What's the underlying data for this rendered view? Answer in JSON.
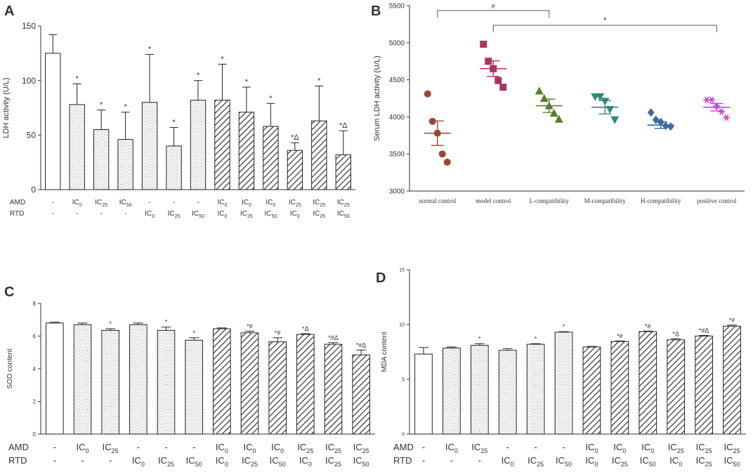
{
  "figure": {
    "panels": [
      "A",
      "B",
      "C",
      "D"
    ]
  },
  "chart_data": [
    {
      "panel": "A",
      "type": "bar",
      "ylabel": "LDH activity (U/L)",
      "ylim": [
        0,
        150
      ],
      "yticks": [
        "0",
        "50",
        "100",
        "150"
      ],
      "row_labels": [
        "AMD",
        "RTD"
      ],
      "categories": [
        {
          "amd": "-",
          "rtd": "-",
          "value": 125,
          "error": 17,
          "sig": "",
          "fill": "open"
        },
        {
          "amd": "IC0",
          "rtd": "-",
          "value": 78,
          "error": 19,
          "sig": "*",
          "fill": "dots"
        },
        {
          "amd": "IC25",
          "rtd": "-",
          "value": 55,
          "error": 18,
          "sig": "*",
          "fill": "dots"
        },
        {
          "amd": "IC50",
          "rtd": "-",
          "value": 46,
          "error": 25,
          "sig": "*",
          "fill": "dots"
        },
        {
          "amd": "-",
          "rtd": "IC0",
          "value": 80,
          "error": 44,
          "sig": "*",
          "fill": "dots"
        },
        {
          "amd": "-",
          "rtd": "IC25",
          "value": 40,
          "error": 17,
          "sig": "*",
          "fill": "dots"
        },
        {
          "amd": "-",
          "rtd": "IC50",
          "value": 82,
          "error": 18,
          "sig": "*",
          "fill": "dots"
        },
        {
          "amd": "IC0",
          "rtd": "IC0",
          "value": 82,
          "error": 33,
          "sig": "*",
          "fill": "hatch"
        },
        {
          "amd": "IC0",
          "rtd": "IC25",
          "value": 71,
          "error": 23,
          "sig": "*",
          "fill": "hatch"
        },
        {
          "amd": "IC0",
          "rtd": "IC50",
          "value": 58,
          "error": 21,
          "sig": "*",
          "fill": "hatch"
        },
        {
          "amd": "IC25",
          "rtd": "IC0",
          "value": 36,
          "error": 7,
          "sig": "*Δ",
          "fill": "hatch"
        },
        {
          "amd": "IC25",
          "rtd": "IC25",
          "value": 63,
          "error": 32,
          "sig": "*",
          "fill": "hatch"
        },
        {
          "amd": "IC25",
          "rtd": "IC50",
          "value": 32,
          "error": 22,
          "sig": "*Δ",
          "fill": "hatch"
        }
      ]
    },
    {
      "panel": "B",
      "type": "scatter",
      "ylabel": "Serum LDH activity (U/L)",
      "ylim": [
        3000,
        5500
      ],
      "yticks": [
        "3000",
        "3500",
        "4000",
        "4500",
        "5000",
        "5500"
      ],
      "groups": [
        {
          "name": "normal control",
          "color": "#a0443a",
          "marker": "circle",
          "points": [
            4310,
            3940,
            3780,
            3500,
            3390
          ],
          "mean": 3780,
          "sem": 165
        },
        {
          "name": "model control",
          "color": "#a8365f",
          "marker": "square",
          "points": [
            4980,
            4750,
            4650,
            4490,
            4400
          ],
          "mean": 4650,
          "sem": 105
        },
        {
          "name": "L-compatibility",
          "color": "#5a7d2a",
          "marker": "triangle-up",
          "points": [
            4350,
            4250,
            4150,
            4050,
            3970
          ],
          "mean": 4150,
          "sem": 90
        },
        {
          "name": "M-compatibility",
          "color": "#2e8b7a",
          "marker": "triangle-down",
          "points": [
            4270,
            4270,
            4210,
            4100,
            3960
          ],
          "mean": 4130,
          "sem": 90
        },
        {
          "name": "H-compatibility",
          "color": "#3e6aa0",
          "marker": "diamond",
          "points": [
            4060,
            3960,
            3930,
            3880,
            3870
          ],
          "mean": 3890,
          "sem": 45
        },
        {
          "name": "positive control",
          "color": "#d733d7",
          "marker": "asterisk",
          "points": [
            4230,
            4230,
            4150,
            4070,
            3990
          ],
          "mean": 4130,
          "sem": 50
        }
      ],
      "annotations": [
        {
          "from": "normal control",
          "to": "L-compatibility",
          "label": "#"
        },
        {
          "from": "model control",
          "to": "positive control",
          "label": "*"
        }
      ]
    },
    {
      "panel": "C",
      "type": "bar",
      "ylabel": "SOD content",
      "ylim": [
        0,
        8
      ],
      "yticks": [
        "0",
        "2",
        "4",
        "6",
        "8"
      ],
      "row_labels": [
        "AMD",
        "RTD"
      ],
      "categories": [
        {
          "amd": "-",
          "rtd": "-",
          "value": 6.8,
          "error": 0.05,
          "sig": "",
          "fill": "open"
        },
        {
          "amd": "IC0",
          "rtd": "-",
          "value": 6.7,
          "error": 0.1,
          "sig": "",
          "fill": "dots"
        },
        {
          "amd": "IC25",
          "rtd": "-",
          "value": 6.35,
          "error": 0.1,
          "sig": "*",
          "fill": "dots"
        },
        {
          "amd": "-",
          "rtd": "IC0",
          "value": 6.7,
          "error": 0.1,
          "sig": "",
          "fill": "dots"
        },
        {
          "amd": "-",
          "rtd": "IC25",
          "value": 6.35,
          "error": 0.2,
          "sig": "*",
          "fill": "dots"
        },
        {
          "amd": "-",
          "rtd": "IC50",
          "value": 5.75,
          "error": 0.15,
          "sig": "*",
          "fill": "dots"
        },
        {
          "amd": "IC0",
          "rtd": "IC0",
          "value": 6.45,
          "error": 0.05,
          "sig": "",
          "fill": "hatch"
        },
        {
          "amd": "IC0",
          "rtd": "IC25",
          "value": 6.2,
          "error": 0.1,
          "sig": "*#",
          "fill": "hatch"
        },
        {
          "amd": "IC0",
          "rtd": "IC50",
          "value": 5.65,
          "error": 0.25,
          "sig": "*#",
          "fill": "hatch"
        },
        {
          "amd": "IC25",
          "rtd": "IC0",
          "value": 6.1,
          "error": 0.05,
          "sig": "*Δ",
          "fill": "hatch"
        },
        {
          "amd": "IC25",
          "rtd": "IC25",
          "value": 5.5,
          "error": 0.1,
          "sig": "*#Δ",
          "fill": "hatch"
        },
        {
          "amd": "IC25",
          "rtd": "IC50",
          "value": 4.85,
          "error": 0.3,
          "sig": "*#Δ",
          "fill": "hatch"
        }
      ]
    },
    {
      "panel": "D",
      "type": "bar",
      "ylabel": "MDA content",
      "ylim": [
        0,
        15
      ],
      "yticks": [
        "0",
        "5",
        "10",
        "15"
      ],
      "row_labels": [
        "AMD",
        "RTD"
      ],
      "categories": [
        {
          "amd": "-",
          "rtd": "-",
          "value": 7.3,
          "error": 0.6,
          "sig": "",
          "fill": "open"
        },
        {
          "amd": "IC0",
          "rtd": "-",
          "value": 7.85,
          "error": 0.1,
          "sig": "",
          "fill": "dots"
        },
        {
          "amd": "IC25",
          "rtd": "-",
          "value": 8.1,
          "error": 0.15,
          "sig": "*",
          "fill": "dots"
        },
        {
          "amd": "-",
          "rtd": "IC0",
          "value": 7.65,
          "error": 0.15,
          "sig": "",
          "fill": "dots"
        },
        {
          "amd": "-",
          "rtd": "IC25",
          "value": 8.2,
          "error": 0.05,
          "sig": "*",
          "fill": "dots"
        },
        {
          "amd": "-",
          "rtd": "IC50",
          "value": 9.3,
          "error": 0.05,
          "sig": "*",
          "fill": "dots"
        },
        {
          "amd": "IC0",
          "rtd": "IC0",
          "value": 7.95,
          "error": 0.05,
          "sig": "",
          "fill": "hatch"
        },
        {
          "amd": "IC0",
          "rtd": "IC25",
          "value": 8.45,
          "error": 0.05,
          "sig": "*#",
          "fill": "hatch"
        },
        {
          "amd": "IC0",
          "rtd": "IC50",
          "value": 9.35,
          "error": 0.05,
          "sig": "*#",
          "fill": "hatch"
        },
        {
          "amd": "IC25",
          "rtd": "IC0",
          "value": 8.6,
          "error": 0.1,
          "sig": "*Δ",
          "fill": "hatch"
        },
        {
          "amd": "IC25",
          "rtd": "IC25",
          "value": 8.95,
          "error": 0.05,
          "sig": "*#Δ",
          "fill": "hatch"
        },
        {
          "amd": "IC25",
          "rtd": "IC50",
          "value": 9.85,
          "error": 0.1,
          "sig": "*#",
          "fill": "hatch"
        }
      ]
    }
  ]
}
